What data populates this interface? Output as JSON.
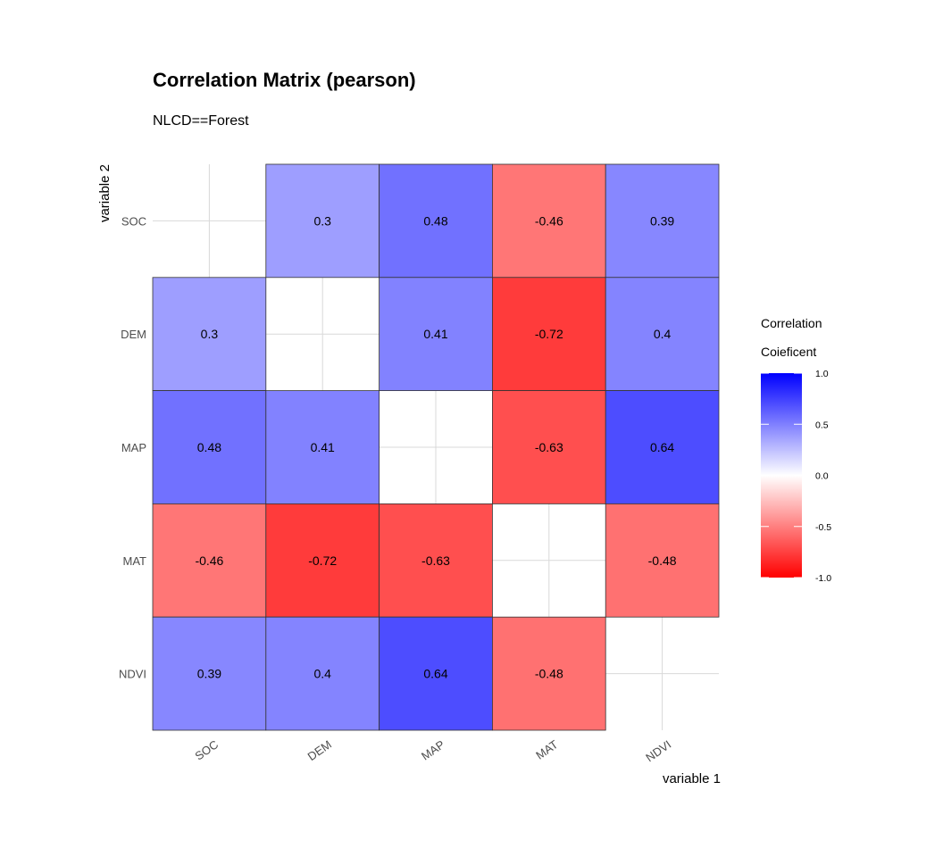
{
  "chart_data": {
    "type": "heatmap",
    "title": "Correlation Matrix (pearson)",
    "subtitle": "NLCD==Forest",
    "xlabel": "variable 1",
    "ylabel": "variable 2",
    "x_categories": [
      "SOC",
      "DEM",
      "MAP",
      "MAT",
      "NDVI"
    ],
    "y_categories": [
      "SOC",
      "DEM",
      "MAP",
      "MAT",
      "NDVI"
    ],
    "values": [
      [
        null,
        0.3,
        0.48,
        -0.46,
        0.39
      ],
      [
        0.3,
        null,
        0.41,
        -0.72,
        0.4
      ],
      [
        0.48,
        0.41,
        null,
        -0.63,
        0.64
      ],
      [
        -0.46,
        -0.72,
        -0.63,
        null,
        -0.48
      ],
      [
        0.39,
        0.4,
        0.64,
        -0.48,
        null
      ]
    ],
    "cell_labels": [
      [
        "",
        "0.3",
        "0.48",
        "-0.46",
        "0.39"
      ],
      [
        "0.3",
        "",
        "0.41",
        "-0.72",
        "0.4"
      ],
      [
        "0.48",
        "0.41",
        "",
        "-0.63",
        "0.64"
      ],
      [
        "-0.46",
        "-0.72",
        "-0.63",
        "",
        "-0.48"
      ],
      [
        "0.39",
        "0.4",
        "0.64",
        "-0.48",
        ""
      ]
    ],
    "legend": {
      "title_line1": "Correlation",
      "title_line2": "Coieficent",
      "ticks": [
        "1.0",
        "0.5",
        "0.0",
        "-0.5",
        "-1.0"
      ],
      "tick_values": [
        1.0,
        0.5,
        0.0,
        -0.5,
        -1.0
      ],
      "range": [
        -1.0,
        1.0
      ],
      "position": "right"
    },
    "colors": {
      "high": "#0000ff",
      "mid": "#ffffff",
      "low": "#ff0000"
    },
    "grid": true
  }
}
